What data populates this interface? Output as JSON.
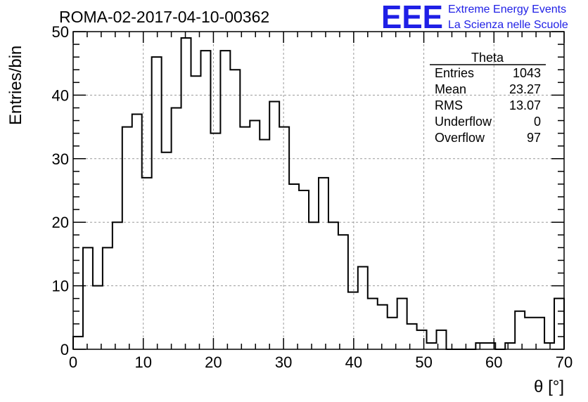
{
  "title": "ROMA-02-2017-04-10-00362",
  "logo": {
    "mark": "EEE",
    "line1": "Extreme Energy Events",
    "line2": "La Scienza nelle Scuole",
    "color": "#1f1fe6"
  },
  "stats": {
    "name": "Theta",
    "rows": [
      {
        "label": "Entries",
        "value": "1043"
      },
      {
        "label": "Mean",
        "value": "23.27"
      },
      {
        "label": "RMS",
        "value": "13.07"
      },
      {
        "label": "Underflow",
        "value": "0"
      },
      {
        "label": "Overflow",
        "value": "97"
      }
    ]
  },
  "chart_data": {
    "type": "bar",
    "histogram": true,
    "title": "ROMA-02-2017-04-10-00362",
    "xlabel": "θ [°]",
    "ylabel": "Entries/bin",
    "xlim": [
      0,
      70
    ],
    "ylim": [
      0,
      50
    ],
    "bin_width": 1.4,
    "bin_edges_start": 0,
    "values": [
      2,
      16,
      10,
      16,
      20,
      35,
      37,
      27,
      46,
      31,
      38,
      49,
      43,
      47,
      34,
      47,
      44,
      35,
      36,
      33,
      39,
      35,
      26,
      25,
      20,
      27,
      20,
      18,
      9,
      13,
      8,
      7,
      5,
      8,
      4,
      3,
      1,
      3,
      0,
      0,
      0,
      1,
      1,
      0,
      1,
      6,
      5,
      5,
      1,
      8
    ],
    "x_ticks": [
      0,
      10,
      20,
      30,
      40,
      50,
      60,
      70
    ],
    "y_ticks": [
      0,
      10,
      20,
      30,
      40,
      50
    ],
    "grid": true,
    "line_color": "#000000"
  }
}
